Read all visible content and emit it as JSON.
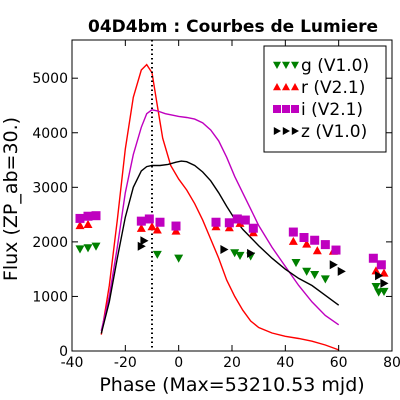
{
  "chart_data": {
    "type": "line",
    "title": "04D4bm : Courbes de Lumiere",
    "xlabel": "Phase (Max=53210.53 mjd)",
    "ylabel": "Flux (ZP_ab=30.)",
    "xlim": [
      -40,
      80
    ],
    "ylim": [
      0,
      5700
    ],
    "x_ticks": [
      -40,
      -20,
      0,
      20,
      40,
      60,
      80
    ],
    "y_ticks": [
      0,
      1000,
      2000,
      3000,
      4000,
      5000
    ],
    "grid": false,
    "legend_position": "top-right",
    "vertical_line": {
      "x": -10,
      "style": "dotted",
      "color": "#000000"
    },
    "series": [
      {
        "name": "g (V1.0)",
        "color": "#008000",
        "marker": "triangle-down",
        "points": [
          [
            -37,
            1870
          ],
          [
            -34,
            1890
          ],
          [
            -31,
            1920
          ],
          [
            -8,
            1770
          ],
          [
            0,
            1700
          ],
          [
            21,
            1800
          ],
          [
            23,
            1750
          ],
          [
            27,
            1740
          ],
          [
            44,
            1620
          ],
          [
            48,
            1460
          ],
          [
            51,
            1400
          ],
          [
            55,
            1320
          ],
          [
            74,
            1180
          ],
          [
            75,
            1080
          ],
          [
            77,
            1090
          ]
        ]
      },
      {
        "name": "r (V2.1)",
        "color": "#ff0000",
        "marker": "triangle-up",
        "points": [
          [
            -37,
            2300
          ],
          [
            -34,
            2320
          ],
          [
            -14,
            2250
          ],
          [
            -10,
            2280
          ],
          [
            -8,
            2220
          ],
          [
            -1,
            2200
          ],
          [
            14,
            2280
          ],
          [
            19,
            2260
          ],
          [
            23,
            2340
          ],
          [
            28,
            2170
          ],
          [
            43,
            2010
          ],
          [
            48,
            1960
          ],
          [
            52,
            1840
          ],
          [
            58,
            1830
          ],
          [
            74,
            1470
          ],
          [
            77,
            1430
          ]
        ]
      },
      {
        "name": "i (V2.1)",
        "color": "#bf00bf",
        "marker": "square",
        "points": [
          [
            -37,
            2430
          ],
          [
            -34,
            2470
          ],
          [
            -31,
            2480
          ],
          [
            -14,
            2380
          ],
          [
            -11,
            2420
          ],
          [
            -7,
            2360
          ],
          [
            -1,
            2290
          ],
          [
            14,
            2360
          ],
          [
            19,
            2350
          ],
          [
            22,
            2420
          ],
          [
            25,
            2400
          ],
          [
            28,
            2250
          ],
          [
            43,
            2180
          ],
          [
            47,
            2080
          ],
          [
            51,
            2030
          ],
          [
            55,
            1950
          ],
          [
            59,
            1850
          ],
          [
            73,
            1700
          ],
          [
            76,
            1580
          ]
        ]
      },
      {
        "name": "z (V1.0)",
        "color": "#000000",
        "marker": "triangle-right",
        "points": [
          [
            -13,
            2020
          ],
          [
            -14,
            1920
          ],
          [
            17,
            1860
          ],
          [
            27,
            1790
          ],
          [
            58,
            1580
          ],
          [
            61,
            1460
          ],
          [
            75,
            1380
          ],
          [
            77,
            1240
          ]
        ]
      }
    ],
    "model_curves": [
      {
        "color": "#ff0000",
        "points": [
          [
            -29,
            300
          ],
          [
            -26,
            1200
          ],
          [
            -23,
            2400
          ],
          [
            -20,
            3700
          ],
          [
            -17,
            4650
          ],
          [
            -14,
            5150
          ],
          [
            -12,
            5250
          ],
          [
            -10,
            5100
          ],
          [
            -8,
            4500
          ],
          [
            -6,
            3900
          ],
          [
            -3,
            3400
          ],
          [
            0,
            3150
          ],
          [
            3,
            2950
          ],
          [
            6,
            2700
          ],
          [
            9,
            2400
          ],
          [
            12,
            2050
          ],
          [
            15,
            1700
          ],
          [
            18,
            1300
          ],
          [
            21,
            1000
          ],
          [
            24,
            750
          ],
          [
            27,
            550
          ],
          [
            30,
            430
          ],
          [
            35,
            330
          ],
          [
            40,
            270
          ],
          [
            45,
            230
          ],
          [
            50,
            180
          ],
          [
            55,
            110
          ],
          [
            60,
            20
          ]
        ]
      },
      {
        "color": "#bf00bf",
        "points": [
          [
            -29,
            370
          ],
          [
            -26,
            1000
          ],
          [
            -23,
            1900
          ],
          [
            -20,
            2900
          ],
          [
            -17,
            3600
          ],
          [
            -14,
            4100
          ],
          [
            -12,
            4350
          ],
          [
            -10,
            4420
          ],
          [
            -8,
            4400
          ],
          [
            -5,
            4350
          ],
          [
            -2,
            4320
          ],
          [
            0,
            4300
          ],
          [
            3,
            4280
          ],
          [
            6,
            4250
          ],
          [
            9,
            4180
          ],
          [
            12,
            4050
          ],
          [
            15,
            3850
          ],
          [
            18,
            3550
          ],
          [
            21,
            3200
          ],
          [
            24,
            2900
          ],
          [
            27,
            2600
          ],
          [
            30,
            2300
          ],
          [
            35,
            1900
          ],
          [
            40,
            1550
          ],
          [
            45,
            1200
          ],
          [
            50,
            900
          ],
          [
            55,
            650
          ],
          [
            60,
            480
          ]
        ]
      },
      {
        "color": "#000000",
        "points": [
          [
            -29,
            320
          ],
          [
            -26,
            900
          ],
          [
            -23,
            1700
          ],
          [
            -20,
            2450
          ],
          [
            -17,
            3000
          ],
          [
            -14,
            3300
          ],
          [
            -12,
            3380
          ],
          [
            -10,
            3400
          ],
          [
            -7,
            3400
          ],
          [
            -4,
            3420
          ],
          [
            -1,
            3460
          ],
          [
            1,
            3480
          ],
          [
            3,
            3470
          ],
          [
            6,
            3400
          ],
          [
            9,
            3280
          ],
          [
            12,
            3120
          ],
          [
            15,
            2900
          ],
          [
            18,
            2650
          ],
          [
            21,
            2420
          ],
          [
            24,
            2230
          ],
          [
            27,
            2080
          ],
          [
            30,
            1930
          ],
          [
            35,
            1700
          ],
          [
            40,
            1500
          ],
          [
            45,
            1330
          ],
          [
            50,
            1200
          ],
          [
            55,
            1020
          ],
          [
            60,
            840
          ]
        ]
      }
    ]
  }
}
